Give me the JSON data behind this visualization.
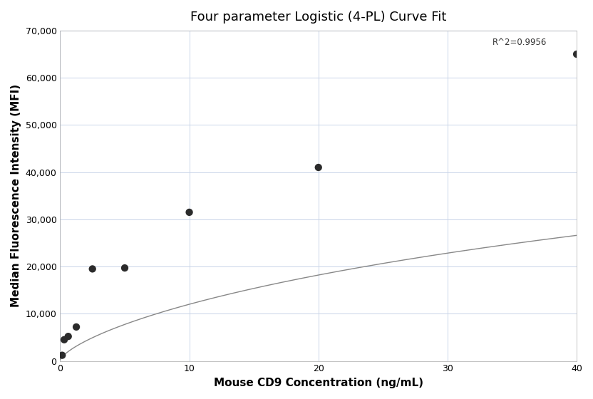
{
  "title": "Four parameter Logistic (4-PL) Curve Fit",
  "xlabel": "Mouse CD9 Concentration (ng/mL)",
  "ylabel": "Median Fluorescence Intensity (MFI)",
  "scatter_x": [
    0.156,
    0.313,
    0.625,
    1.25,
    2.5,
    5.0,
    10.0,
    20.0,
    40.0
  ],
  "scatter_y": [
    1200,
    4500,
    5200,
    7200,
    19500,
    19700,
    31500,
    41000,
    65000
  ],
  "r2_text": "R^2=0.9956",
  "r2_x": 33.5,
  "r2_y": 68500,
  "xlim": [
    0,
    40
  ],
  "ylim": [
    0,
    70000
  ],
  "xticks": [
    0,
    10,
    20,
    30,
    40
  ],
  "yticks": [
    0,
    10000,
    20000,
    30000,
    40000,
    50000,
    60000,
    70000
  ],
  "ytick_labels": [
    "0",
    "10,000",
    "20,000",
    "30,000",
    "40,000",
    "50,000",
    "60,000",
    "70,000"
  ],
  "point_color": "#2b2b2b",
  "point_size": 55,
  "curve_color": "#888888",
  "background_color": "#ffffff",
  "grid_color": "#c8d4e8",
  "title_fontsize": 13,
  "label_fontsize": 11,
  "tick_fontsize": 9,
  "4pl_A": 200,
  "4pl_B": 0.72,
  "4pl_C": 150.0,
  "4pl_D": 95000
}
